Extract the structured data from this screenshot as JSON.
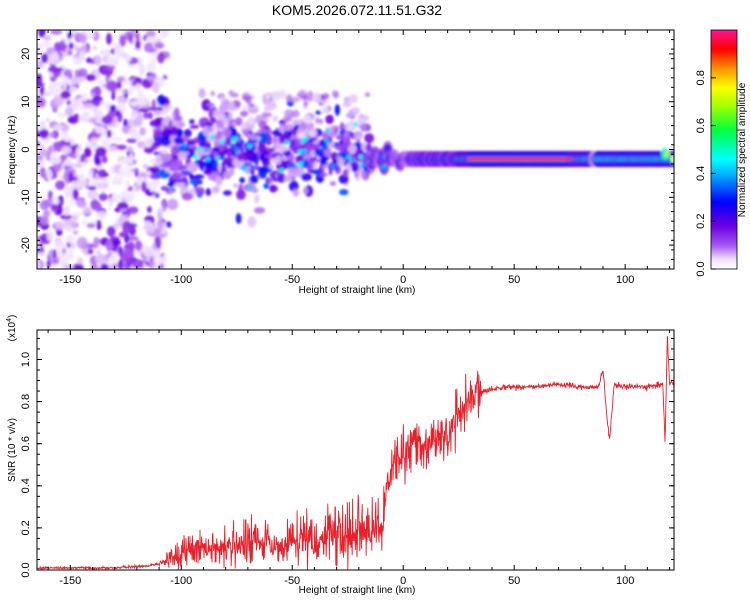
{
  "title": "KOM5.2026.072.11.51.G32",
  "chart_data": [
    {
      "type": "heatmap",
      "name": "spectrogram",
      "xlabel": "Height of straight line (km)",
      "ylabel": "Frequency (Hz)",
      "xlim": [
        -165,
        122
      ],
      "ylim": [
        -25,
        25
      ],
      "xticks": [
        -150,
        -100,
        -50,
        0,
        50,
        100
      ],
      "yticks": [
        -20,
        -10,
        0,
        10,
        20
      ],
      "xtick_labels": [
        "-150",
        "-100",
        "-50",
        "0",
        "50",
        "100"
      ],
      "ytick_labels": [
        "-20",
        "-10",
        "0",
        "10",
        "20"
      ],
      "colorbar": {
        "label": "Normalized spectral amplitude",
        "range": [
          0,
          1
        ],
        "ticks": [
          0.0,
          0.2,
          0.4,
          0.6,
          0.8
        ],
        "tick_labels": [
          "0.0",
          "0.2",
          "0.4",
          "0.6",
          "0.8"
        ],
        "colormap": [
          "#f2e6ff",
          "#8a2be2",
          "#0000ff",
          "#00ffff",
          "#00ff00",
          "#ffff00",
          "#ff7f00",
          "#ff0000",
          "#ff1493"
        ]
      },
      "features": {
        "noise_region_x": [
          -165,
          -115
        ],
        "scattered_region_x": [
          -112,
          -15
        ],
        "band_center_hz": -2,
        "band_start_x": -15,
        "peak_region_x": [
          30,
          75
        ]
      }
    },
    {
      "type": "line",
      "name": "snr",
      "xlabel": "Height of straight line (km)",
      "ylabel": "SNR (10 * v/v)",
      "multiplier_label": "(x10",
      "multiplier_exp": "4",
      "multiplier_close": ")",
      "xlim": [
        -165,
        122
      ],
      "ylim": [
        0,
        1.14
      ],
      "xticks": [
        -150,
        -100,
        -50,
        0,
        50,
        100
      ],
      "yticks": [
        0.0,
        0.2,
        0.4,
        0.6,
        0.8,
        1.0
      ],
      "xtick_labels": [
        "-150",
        "-100",
        "-50",
        "0",
        "50",
        "100"
      ],
      "ytick_labels": [
        "0.0",
        "0.2",
        "0.4",
        "0.6",
        "0.8",
        "1.0"
      ],
      "color": "#e8202a",
      "series": [
        {
          "name": "SNR",
          "x": [
            -165,
            -130,
            -115,
            -110,
            -105,
            -100,
            -90,
            -80,
            -70,
            -60,
            -50,
            -40,
            -35,
            -30,
            -25,
            -20,
            -15,
            -12,
            -10,
            -8,
            -5,
            0,
            5,
            10,
            15,
            20,
            25,
            30,
            35,
            40,
            45,
            50,
            60,
            70,
            80,
            88,
            90,
            92,
            93,
            95,
            100,
            110,
            115,
            117,
            118,
            119,
            120,
            122
          ],
          "y": [
            0.01,
            0.01,
            0.02,
            0.03,
            0.05,
            0.08,
            0.1,
            0.1,
            0.12,
            0.11,
            0.12,
            0.13,
            0.14,
            0.15,
            0.15,
            0.17,
            0.17,
            0.2,
            0.18,
            0.35,
            0.48,
            0.53,
            0.6,
            0.58,
            0.62,
            0.63,
            0.72,
            0.8,
            0.84,
            0.86,
            0.87,
            0.87,
            0.87,
            0.88,
            0.87,
            0.87,
            0.95,
            0.7,
            0.62,
            0.88,
            0.87,
            0.87,
            0.88,
            0.88,
            0.6,
            1.12,
            0.88,
            0.9
          ]
        }
      ]
    }
  ]
}
